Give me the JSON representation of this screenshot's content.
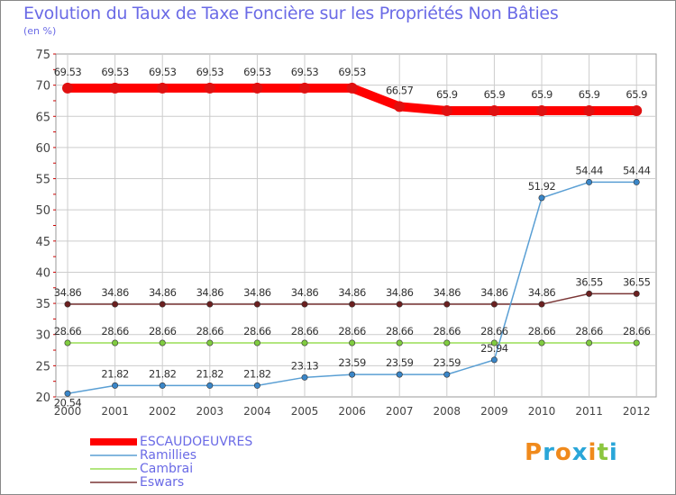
{
  "header": {
    "title": "Evolution du Taux de Taxe Foncière sur les Propriétés Non Bâties",
    "unit": "(en %)"
  },
  "logo": {
    "text": "Proxiti",
    "letters": [
      "P",
      "r",
      "o",
      "x",
      "i",
      "t",
      "i"
    ],
    "colors": [
      "#f08a1c",
      "#2aa6d8",
      "#f08a1c",
      "#2aa6d8",
      "#f08a1c",
      "#8cc63f",
      "#2aa6d8"
    ]
  },
  "chart_data": {
    "type": "line",
    "title": "Evolution du Taux de Taxe Foncière sur les Propriétés Non Bâties",
    "ylabel": "(en %)",
    "xlabel": "",
    "categories": [
      "2000",
      "2001",
      "2002",
      "2003",
      "2004",
      "2005",
      "2006",
      "2007",
      "2008",
      "2009",
      "2010",
      "2011",
      "2012"
    ],
    "ylim": [
      20,
      75
    ],
    "yticks": [
      20,
      25,
      30,
      35,
      40,
      45,
      50,
      55,
      60,
      65,
      70,
      75
    ],
    "grid": true,
    "series": [
      {
        "name": "ESCAUDOEUVRES",
        "color": "#ff0000",
        "dot": "#e01010",
        "thick": true,
        "values": [
          69.53,
          69.53,
          69.53,
          69.53,
          69.53,
          69.53,
          69.53,
          66.57,
          65.9,
          65.9,
          65.9,
          65.9,
          65.9
        ],
        "labels": [
          "69.53",
          "69.53",
          "69.53",
          "69.53",
          "69.53",
          "69.53",
          "69.53",
          "66.57",
          "65.9",
          "65.9",
          "65.9",
          "65.9",
          "65.9"
        ]
      },
      {
        "name": "Ramillies",
        "color": "#5a9fd4",
        "dot": "#3a86c8",
        "thick": false,
        "values": [
          20.54,
          21.82,
          21.82,
          21.82,
          21.82,
          23.13,
          23.59,
          23.59,
          23.59,
          25.94,
          51.92,
          54.44,
          54.44
        ],
        "labels": [
          "20.54",
          "21.82",
          "21.82",
          "21.82",
          "21.82",
          "23.13",
          "23.59",
          "23.59",
          "23.59",
          "25.94",
          "51.92",
          "54.44",
          "54.44"
        ]
      },
      {
        "name": "Cambrai",
        "color": "#99dd55",
        "dot": "#80cc40",
        "thick": false,
        "values": [
          28.66,
          28.66,
          28.66,
          28.66,
          28.66,
          28.66,
          28.66,
          28.66,
          28.66,
          28.66,
          28.66,
          28.66,
          28.66
        ],
        "labels": [
          "28.66",
          "28.66",
          "28.66",
          "28.66",
          "28.66",
          "28.66",
          "28.66",
          "28.66",
          "28.66",
          "28.66",
          "28.66",
          "28.66",
          "28.66"
        ]
      },
      {
        "name": "Eswars",
        "color": "#7a3535",
        "dot": "#6b2020",
        "thick": false,
        "values": [
          34.86,
          34.86,
          34.86,
          34.86,
          34.86,
          34.86,
          34.86,
          34.86,
          34.86,
          34.86,
          34.86,
          36.55,
          36.55
        ],
        "labels": [
          "34.86",
          "34.86",
          "34.86",
          "34.86",
          "34.86",
          "34.86",
          "34.86",
          "34.86",
          "34.86",
          "34.86",
          "34.86",
          "36.55",
          "36.55"
        ]
      }
    ]
  }
}
